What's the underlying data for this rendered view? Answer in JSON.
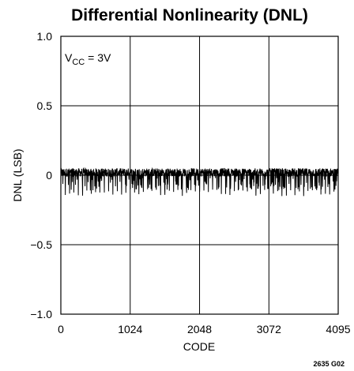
{
  "chart_data": {
    "type": "line",
    "title": "Differential Nonlinearity (DNL)",
    "xlabel": "CODE",
    "ylabel": "DNL (LSB)",
    "xlim": [
      0,
      4095
    ],
    "ylim": [
      -1.0,
      1.0
    ],
    "x_ticks": [
      0,
      1024,
      2048,
      3072,
      4095
    ],
    "x_tick_labels": [
      "0",
      "1024",
      "2048",
      "3072",
      "4095"
    ],
    "y_ticks": [
      -1.0,
      -0.5,
      0,
      0.5,
      1.0
    ],
    "y_tick_labels": [
      "−1.0",
      "−0.5",
      "0",
      "0.5",
      "1.0"
    ],
    "grid": true,
    "annotation": {
      "main": "V",
      "sub": "CC",
      "rest": " = 3V"
    },
    "figure_id": "2635 G02",
    "series": [
      {
        "name": "",
        "description": "DNL vs code; values lie between about -0.15 and +0.05 LSB",
        "envelope": {
          "upper": 0.05,
          "lower_typical": -0.1,
          "lower_extreme": -0.15,
          "spike_period_codes": 64
        },
        "x": [
          0,
          512,
          1024,
          1536,
          2048,
          2560,
          3072,
          3584,
          4095
        ],
        "values": [
          0.02,
          0.03,
          0.02,
          0.03,
          0.04,
          0.03,
          0.02,
          0.03,
          0.03
        ]
      }
    ],
    "line_color": "#000000"
  }
}
